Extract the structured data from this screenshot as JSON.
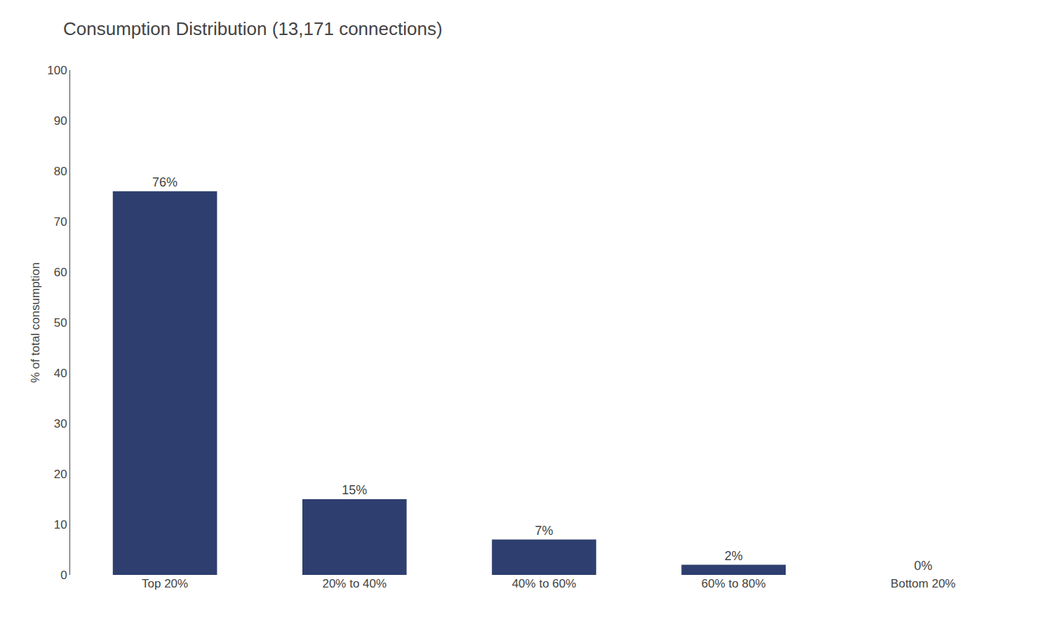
{
  "chart_data": {
    "type": "bar",
    "title": "Consumption Distribution (13,171 connections)",
    "ylabel": "% of total consumption",
    "categories": [
      "Top 20%",
      "20% to 40%",
      "40% to 60%",
      "60% to 80%",
      "Bottom 20%"
    ],
    "values": [
      76,
      15,
      7,
      2,
      0
    ],
    "value_labels": [
      "76%",
      "15%",
      "7%",
      "2%",
      "0%"
    ],
    "color": "#2E3F6F",
    "ylim": [
      0,
      100
    ],
    "yticks": [
      0,
      10,
      20,
      30,
      40,
      50,
      60,
      70,
      80,
      90,
      100
    ],
    "grid": false,
    "data_labels": true
  }
}
